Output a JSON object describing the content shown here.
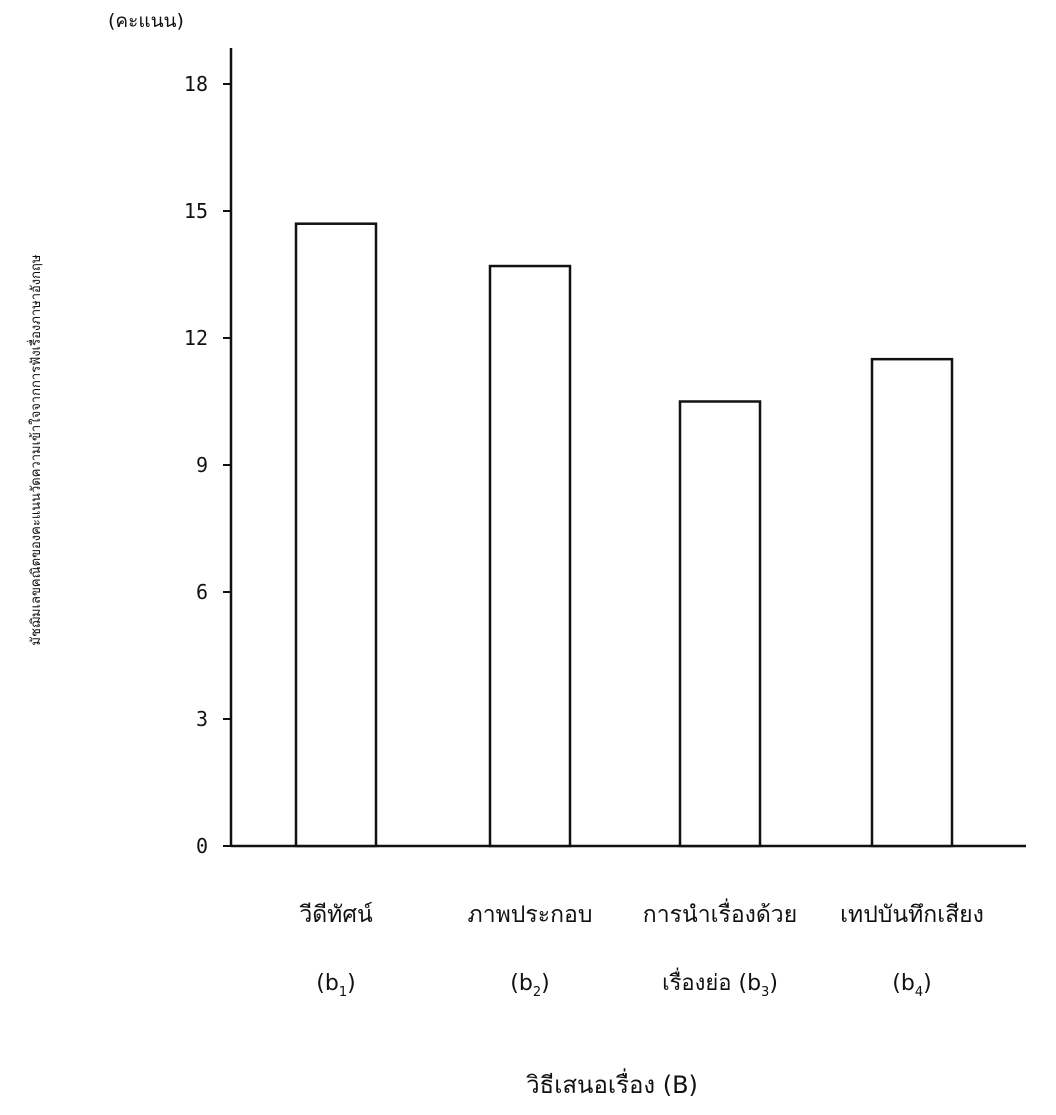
{
  "chart_data": {
    "type": "bar",
    "title": "",
    "unit_label": "(คะแนน)",
    "ylabel": "มัชฌิมเลขคณิตของคะแนนวัดความเข้าใจจากการฟังเรื่องภาษาอังกฤษ",
    "xlabel": "วิธีเสนอเรื่อง (B)",
    "ylim": [
      0,
      18
    ],
    "yticks": [
      0,
      3,
      6,
      9,
      12,
      15,
      18
    ],
    "grid": false,
    "categories": [
      {
        "line1": "วีดีทัศน์",
        "line2": "(b",
        "sub": "1",
        "close": ")"
      },
      {
        "line1": "ภาพประกอบ",
        "line2": "(b",
        "sub": "2",
        "close": ")"
      },
      {
        "line1": "การนำเรื่องด้วย",
        "line2": "เรื่องย่อ (b",
        "sub": "3",
        "close": ")"
      },
      {
        "line1": "เทปบันทึกเสียง",
        "line2": "(b",
        "sub": "4",
        "close": ")"
      }
    ],
    "values": [
      14.7,
      13.7,
      10.5,
      11.5
    ],
    "colors": {
      "bar_fill": "#ffffff",
      "stroke": "#111111"
    }
  }
}
